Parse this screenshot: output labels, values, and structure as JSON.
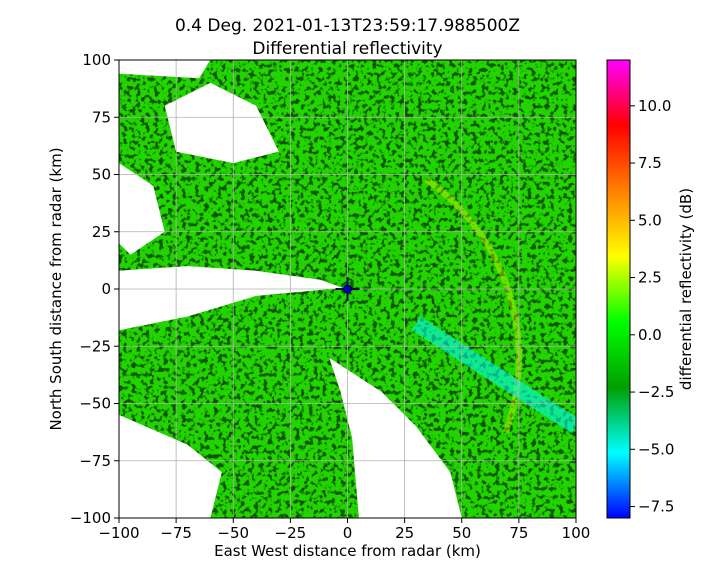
{
  "chart_data": {
    "type": "heatmap",
    "title": "0.4 Deg. 2021-01-13T23:59:17.988500Z",
    "subtitle": "Differential reflectivity",
    "xlabel": "East West distance from radar (km)",
    "ylabel": "North South distance from radar (km)",
    "xlim": [
      -100,
      100
    ],
    "ylim": [
      -100,
      100
    ],
    "x_ticks": [
      -100,
      -75,
      -50,
      -25,
      0,
      25,
      50,
      75,
      100
    ],
    "y_ticks": [
      -100,
      -75,
      -50,
      -25,
      0,
      25,
      50,
      75,
      100
    ],
    "x_tick_labels": [
      "−100",
      "−75",
      "−50",
      "−25",
      "0",
      "25",
      "50",
      "75",
      "100"
    ],
    "y_tick_labels": [
      "−100",
      "−75",
      "−50",
      "−25",
      "0",
      "25",
      "50",
      "75",
      "100"
    ],
    "grid": true,
    "radar_location": [
      0,
      0
    ],
    "colorbar": {
      "label": "differential reflectivity (dB)",
      "range": [
        -8,
        12
      ],
      "ticks": [
        -7.5,
        -5.0,
        -2.5,
        0.0,
        2.5,
        5.0,
        7.5,
        10.0
      ],
      "tick_labels": [
        "−7.5",
        "−5.0",
        "−2.5",
        "0.0",
        "2.5",
        "5.0",
        "7.5",
        "10.0"
      ],
      "colors": [
        "#0000ff",
        "#00ffff",
        "#00a000",
        "#00ff00",
        "#ffff00",
        "#ff8000",
        "#ff0000",
        "#ff00ff"
      ]
    },
    "no_data_regions": [
      {
        "name": "west-wedge",
        "polygon": [
          [
            -100,
            8
          ],
          [
            -70,
            10
          ],
          [
            -40,
            8
          ],
          [
            -12,
            4
          ],
          [
            -2,
            0.5
          ],
          [
            -40,
            -3
          ],
          [
            -70,
            -12
          ],
          [
            -100,
            -18
          ]
        ]
      },
      {
        "name": "south-wedge",
        "polygon": [
          [
            -8,
            -30
          ],
          [
            15,
            -45
          ],
          [
            30,
            -60
          ],
          [
            45,
            -80
          ],
          [
            50,
            -100
          ],
          [
            5,
            -100
          ],
          [
            2,
            -65
          ],
          [
            -3,
            -45
          ]
        ]
      },
      {
        "name": "northwest-patch",
        "polygon": [
          [
            -60,
            90
          ],
          [
            -40,
            80
          ],
          [
            -30,
            60
          ],
          [
            -50,
            55
          ],
          [
            -75,
            60
          ],
          [
            -80,
            80
          ]
        ]
      },
      {
        "name": "west-notch",
        "polygon": [
          [
            -100,
            55
          ],
          [
            -85,
            45
          ],
          [
            -80,
            25
          ],
          [
            -95,
            15
          ],
          [
            -100,
            20
          ]
        ]
      },
      {
        "name": "southwest-patch",
        "polygon": [
          [
            -100,
            -55
          ],
          [
            -70,
            -68
          ],
          [
            -55,
            -80
          ],
          [
            -60,
            -100
          ],
          [
            -100,
            -100
          ]
        ]
      },
      {
        "name": "north-edge-patch",
        "polygon": [
          [
            -100,
            100
          ],
          [
            -60,
            100
          ],
          [
            -65,
            92
          ],
          [
            -100,
            94
          ]
        ]
      }
    ],
    "features": [
      {
        "name": "northeast-ring",
        "shape": "arc",
        "center": [
          -20,
          -30
        ],
        "radius": 95,
        "from_deg": -20,
        "to_deg": 55,
        "value": 2.2
      },
      {
        "name": "southeast-cyan-band",
        "shape": "band",
        "from": [
          30,
          -15
        ],
        "to": [
          100,
          -60
        ],
        "width": 7,
        "value": -4.5
      }
    ]
  }
}
